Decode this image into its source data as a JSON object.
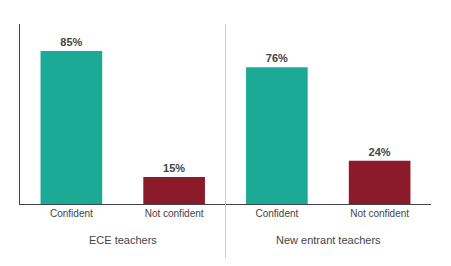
{
  "chart_data": {
    "type": "bar",
    "categories": [
      "Confident",
      "Not confident",
      "Confident",
      "Not confident"
    ],
    "groups": [
      "ECE teachers",
      "ECE teachers",
      "New entrant teachers",
      "New entrant teachers"
    ],
    "values": [
      85,
      15,
      76,
      24
    ],
    "value_labels": [
      "85%",
      "15%",
      "76%",
      "24%"
    ],
    "colors": [
      "#1aaa96",
      "#8b1a2a",
      "#1aaa96",
      "#8b1a2a"
    ],
    "ylim": [
      0,
      100
    ],
    "data_labels": true,
    "tick_labels": "x",
    "grid": false
  }
}
